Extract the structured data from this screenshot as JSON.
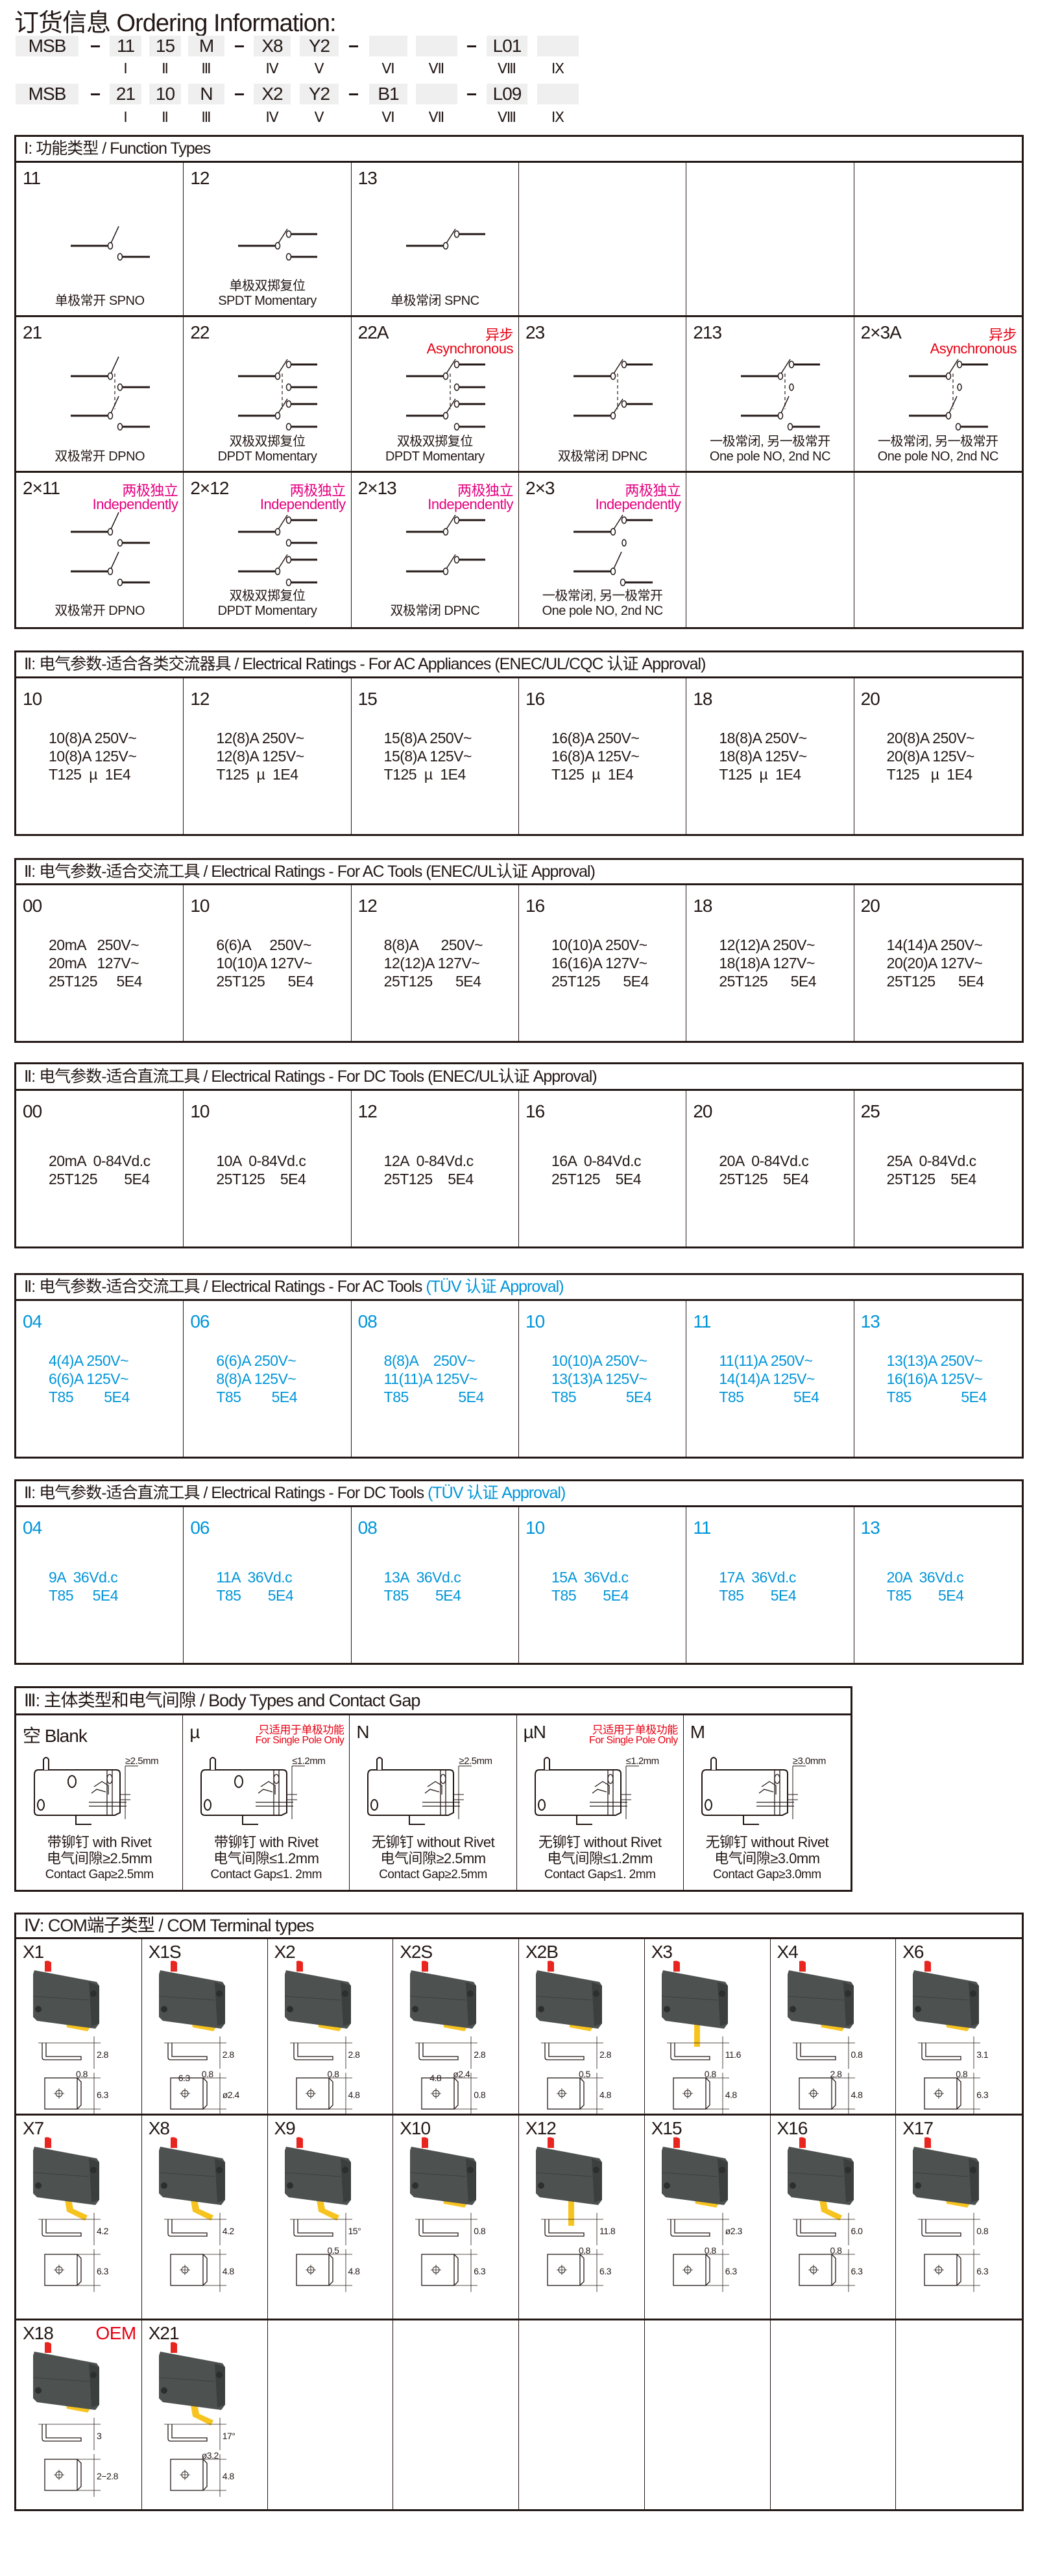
{
  "colors": {
    "text": "#231815",
    "red": "#e60012",
    "magenta": "#e4007f",
    "blue": "#0095d9",
    "button": "#e8251f",
    "body": "#4d5250",
    "terminal": "#f7c31f",
    "code_box": "#efefef"
  },
  "ordering": {
    "title": "订货信息 Ordering Information:",
    "rows": [
      {
        "codes": [
          "MSB",
          "11",
          "15",
          "M",
          "X8",
          "Y2",
          "",
          "",
          "L01",
          ""
        ]
      },
      {
        "codes": [
          "MSB",
          "21",
          "10",
          "N",
          "X2",
          "Y2",
          "B1",
          "",
          "L09",
          ""
        ]
      }
    ],
    "roman": [
      "Ⅰ",
      "Ⅱ",
      "Ⅲ",
      "Ⅳ",
      "Ⅴ",
      "Ⅵ",
      "Ⅶ",
      "Ⅷ",
      "Ⅸ"
    ]
  },
  "function_types": {
    "title": "Ⅰ: 功能类型 / Function Types",
    "cells": [
      {
        "code": "11",
        "diagram": {
          "poles": [
            "no"
          ],
          "linked": false
        },
        "labels": [
          "单极常开 SPNO"
        ]
      },
      {
        "code": "12",
        "diagram": {
          "poles": [
            "dt"
          ],
          "linked": false
        },
        "labels": [
          "单极双掷复位",
          "SPDT Momentary"
        ]
      },
      {
        "code": "13",
        "diagram": {
          "poles": [
            "nc"
          ],
          "linked": false
        },
        "labels": [
          "单极常闭 SPNC"
        ]
      },
      {},
      {},
      {},
      {
        "code": "21",
        "diagram": {
          "poles": [
            "no",
            "no"
          ],
          "linked": true
        },
        "labels": [
          "双极常开 DPNO"
        ]
      },
      {
        "code": "22",
        "diagram": {
          "poles": [
            "dt",
            "dt"
          ],
          "linked": true
        },
        "labels": [
          "双极双掷复位",
          "DPDT Momentary"
        ]
      },
      {
        "code": "22A",
        "note": [
          "异步",
          "Asynchronous"
        ],
        "note_color": "red",
        "diagram": {
          "poles": [
            "dt",
            "dt"
          ],
          "linked": true
        },
        "labels": [
          "双极双掷复位",
          "DPDT Momentary"
        ]
      },
      {
        "code": "23",
        "diagram": {
          "poles": [
            "nc",
            "nc"
          ],
          "linked": true
        },
        "labels": [
          "双极常闭 DPNC"
        ]
      },
      {
        "code": "213",
        "diagram": {
          "poles": [
            "ncx",
            "no"
          ],
          "linked": true
        },
        "labels": [
          "一极常闭, 另一极常开",
          "One pole NO, 2nd NC"
        ]
      },
      {
        "code": "2×3A",
        "note": [
          "异步",
          "Asynchronous"
        ],
        "note_color": "red",
        "diagram": {
          "poles": [
            "ncx",
            "no"
          ],
          "linked": true
        },
        "labels": [
          "一极常闭, 另一极常开",
          "One pole NO, 2nd NC"
        ]
      },
      {
        "code": "2×11",
        "note": [
          "两极独立",
          "Independently"
        ],
        "note_color": "magenta",
        "diagram": {
          "poles": [
            "no",
            "no"
          ],
          "linked": false
        },
        "labels": [
          "双极常开 DPNO"
        ]
      },
      {
        "code": "2×12",
        "note": [
          "两极独立",
          "Independently"
        ],
        "note_color": "magenta",
        "diagram": {
          "poles": [
            "dt",
            "dt"
          ],
          "linked": false
        },
        "labels": [
          "双极双掷复位",
          "DPDT Momentary"
        ]
      },
      {
        "code": "2×13",
        "note": [
          "两极独立",
          "Independently"
        ],
        "note_color": "magenta",
        "diagram": {
          "poles": [
            "nc",
            "nc"
          ],
          "linked": false
        },
        "labels": [
          "双极常闭 DPNC"
        ]
      },
      {
        "code": "2×3",
        "note": [
          "两极独立",
          "Independently"
        ],
        "note_color": "magenta",
        "diagram": {
          "poles": [
            "ncx",
            "no"
          ],
          "linked": false
        },
        "labels": [
          "一极常闭, 另一极常开",
          "One pole NO, 2nd NC"
        ]
      },
      {},
      {}
    ]
  },
  "ratings": [
    {
      "title": "Ⅱ: 电气参数-适合各类交流器具 / Electrical Ratings - For AC Appliances ",
      "approval": "(ENEC/UL/CQC 认证 Approval)",
      "color": "text",
      "cells": [
        {
          "code": "10",
          "lines": [
            "10(8)A 250V~",
            "10(8)A 125V~",
            "T125  µ  1E4"
          ]
        },
        {
          "code": "12",
          "lines": [
            "12(8)A 250V~",
            "12(8)A 125V~",
            "T125  µ  1E4"
          ]
        },
        {
          "code": "15",
          "lines": [
            "15(8)A 250V~",
            "15(8)A 125V~",
            "T125  µ  1E4"
          ]
        },
        {
          "code": "16",
          "lines": [
            "16(8)A 250V~",
            "16(8)A 125V~",
            "T125  µ  1E4"
          ]
        },
        {
          "code": "18",
          "lines": [
            "18(8)A 250V~",
            "18(8)A 125V~",
            "T125  µ  1E4"
          ]
        },
        {
          "code": "20",
          "lines": [
            "20(8)A 250V~",
            "20(8)A 125V~",
            "T125   µ  1E4"
          ]
        }
      ]
    },
    {
      "title": "Ⅱ: 电气参数-适合交流工具 / Electrical Ratings - For AC Tools ",
      "approval": "(ENEC/UL认证 Approval)",
      "color": "text",
      "cells": [
        {
          "code": "00",
          "lines": [
            "20mA   250V~",
            "20mA   127V~",
            "25T125     5E4"
          ]
        },
        {
          "code": "10",
          "lines": [
            "6(6)A     250V~",
            "10(10)A 127V~",
            "25T125      5E4"
          ]
        },
        {
          "code": "12",
          "lines": [
            "8(8)A      250V~",
            "12(12)A 127V~",
            "25T125      5E4"
          ]
        },
        {
          "code": "16",
          "lines": [
            "10(10)A 250V~",
            "16(16)A 127V~",
            "25T125      5E4"
          ]
        },
        {
          "code": "18",
          "lines": [
            "12(12)A 250V~",
            "18(18)A 127V~",
            "25T125      5E4"
          ]
        },
        {
          "code": "20",
          "lines": [
            "14(14)A 250V~",
            "20(20)A 127V~",
            "25T125      5E4"
          ]
        }
      ]
    },
    {
      "title": "Ⅱ: 电气参数-适合直流工具 / Electrical Ratings - For DC Tools ",
      "approval": "(ENEC/UL认证 Approval)",
      "color": "text",
      "cells": [
        {
          "code": "00",
          "lines": [
            "20mA  0-84Vd.c",
            "25T125       5E4"
          ]
        },
        {
          "code": "10",
          "lines": [
            "10A  0-84Vd.c",
            "25T125    5E4"
          ]
        },
        {
          "code": "12",
          "lines": [
            "12A  0-84Vd.c",
            "25T125    5E4"
          ]
        },
        {
          "code": "16",
          "lines": [
            "16A  0-84Vd.c",
            "25T125    5E4"
          ]
        },
        {
          "code": "20",
          "lines": [
            "20A  0-84Vd.c",
            "25T125    5E4"
          ]
        },
        {
          "code": "25",
          "lines": [
            "25A  0-84Vd.c",
            "25T125    5E4"
          ]
        }
      ]
    },
    {
      "title": "Ⅱ: 电气参数-适合交流工具 / Electrical Ratings - For AC Tools ",
      "approval": "(TÜV 认证 Approval)",
      "color": "blue",
      "cells": [
        {
          "code": "04",
          "lines": [
            "4(4)A 250V~",
            "6(6)A 125V~",
            "T85        5E4"
          ]
        },
        {
          "code": "06",
          "lines": [
            "6(6)A 250V~",
            "8(8)A 125V~",
            "T85        5E4"
          ]
        },
        {
          "code": "08",
          "lines": [
            "8(8)A    250V~",
            "11(11)A 125V~",
            "T85             5E4"
          ]
        },
        {
          "code": "10",
          "lines": [
            "10(10)A 250V~",
            "13(13)A 125V~",
            "T85             5E4"
          ]
        },
        {
          "code": "11",
          "lines": [
            "11(11)A 250V~",
            "14(14)A 125V~",
            "T85             5E4"
          ]
        },
        {
          "code": "13",
          "lines": [
            "13(13)A 250V~",
            "16(16)A 125V~",
            "T85             5E4"
          ]
        }
      ]
    },
    {
      "title": "Ⅱ: 电气参数-适合直流工具 / Electrical Ratings - For DC Tools ",
      "approval": "(TÜV 认证 Approval)",
      "color": "blue",
      "cells": [
        {
          "code": "04",
          "lines": [
            "9A  36Vd.c",
            "T85     5E4"
          ]
        },
        {
          "code": "06",
          "lines": [
            "11A  36Vd.c",
            "T85       5E4"
          ]
        },
        {
          "code": "08",
          "lines": [
            "13A  36Vd.c",
            "T85       5E4"
          ]
        },
        {
          "code": "10",
          "lines": [
            "15A  36Vd.c",
            "T85       5E4"
          ]
        },
        {
          "code": "11",
          "lines": [
            "17A  36Vd.c",
            "T85       5E4"
          ]
        },
        {
          "code": "13",
          "lines": [
            "20A  36Vd.c",
            "T85       5E4"
          ]
        }
      ]
    }
  ],
  "body_types": {
    "title": "Ⅲ: 主体类型和电气间隙 / Body Types and Contact Gap",
    "cells": [
      {
        "code": "空 Blank",
        "gap": "≥2.5mm",
        "rivet": true,
        "lines": [
          "带铆钉 with Rivet",
          "电气间隙≥2.5mm",
          "Contact Gap≥2.5mm"
        ]
      },
      {
        "code": "µ",
        "note": [
          "只适用于单极功能",
          "For Single Pole Only"
        ],
        "gap": "≤1.2mm",
        "rivet": true,
        "lines": [
          "带铆钉 with Rivet",
          "电气间隙≤1.2mm",
          "Contact Gap≤1. 2mm"
        ]
      },
      {
        "code": "N",
        "gap": "≥2.5mm",
        "rivet": false,
        "lines": [
          "无铆钉 without Rivet",
          "电气间隙≥2.5mm",
          "Contact Gap≥2.5mm"
        ]
      },
      {
        "code": "µN",
        "note": [
          "只适用于单极功能",
          "For Single Pole Only"
        ],
        "gap": "≤1.2mm",
        "rivet": false,
        "lines": [
          "无铆钉 without Rivet",
          "电气间隙≤1.2mm",
          "Contact Gap≤1. 2mm"
        ]
      },
      {
        "code": "M",
        "gap": "≥3.0mm",
        "rivet": false,
        "lines": [
          "无铆钉 without Rivet",
          "电气间隙≥3.0mm",
          "Contact Gap≥3.0mm"
        ]
      }
    ]
  },
  "terminals": {
    "title": "Ⅳ: COM端子类型 / COM Terminal types",
    "cells": [
      {
        "code": "X1",
        "dims": [
          "2.8",
          "0.8",
          "6.3"
        ]
      },
      {
        "code": "X1S",
        "dims": [
          "2.8",
          "0.8",
          "ø2.4",
          "6.3"
        ]
      },
      {
        "code": "X2",
        "dims": [
          "2.8",
          "0.8",
          "4.8"
        ]
      },
      {
        "code": "X2S",
        "dims": [
          "2.8",
          "ø2.4",
          "0.8",
          "4.8"
        ]
      },
      {
        "code": "X2B",
        "dims": [
          "2.8",
          "0.5",
          "4.8"
        ]
      },
      {
        "code": "X3",
        "dims": [
          "11.6",
          "0.8",
          "4.8"
        ]
      },
      {
        "code": "X4",
        "dims": [
          "0.8",
          "2.8",
          "4.8"
        ]
      },
      {
        "code": "X6",
        "dims": [
          "3.1",
          "0.8",
          "6.3"
        ]
      },
      {
        "code": "X7",
        "dims": [
          "4.2",
          "6.3"
        ]
      },
      {
        "code": "X8",
        "dims": [
          "4.2",
          "4.8"
        ]
      },
      {
        "code": "X9",
        "dims": [
          "15°",
          "0.5",
          "4.8"
        ]
      },
      {
        "code": "X10",
        "dims": [
          "0.8",
          "6.3"
        ]
      },
      {
        "code": "X12",
        "dims": [
          "11.8",
          "0.8",
          "6.3"
        ]
      },
      {
        "code": "X15",
        "dims": [
          "ø2.3",
          "0.8",
          "6.3"
        ]
      },
      {
        "code": "X16",
        "dims": [
          "6.0",
          "0.8",
          "6.3"
        ]
      },
      {
        "code": "X17",
        "dims": [
          "0.8",
          "6.3"
        ]
      },
      {
        "code": "X18",
        "note": "OEM",
        "dims": [
          "3",
          "2−2.8"
        ]
      },
      {
        "code": "X21",
        "dims": [
          "17°",
          "ø3.2",
          "4.8"
        ]
      },
      {},
      {},
      {},
      {},
      {},
      {}
    ]
  }
}
